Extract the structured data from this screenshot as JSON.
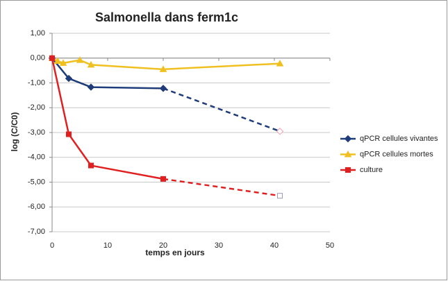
{
  "chart_data": {
    "type": "line",
    "title": "Salmonella dans ferm1c",
    "ylabel": "log (C/C0)",
    "xlabel": "temps en jours",
    "xlim": [
      0,
      50
    ],
    "xticks": [
      0,
      10,
      20,
      30,
      40,
      50
    ],
    "ylim": [
      -7,
      1
    ],
    "yticks": [
      {
        "value": 1,
        "label": "1,00"
      },
      {
        "value": 0,
        "label": "0,00"
      },
      {
        "value": -1,
        "label": "-1,00"
      },
      {
        "value": -2,
        "label": "-2,00"
      },
      {
        "value": -3,
        "label": "-3,00"
      },
      {
        "value": -4,
        "label": "-4,00"
      },
      {
        "value": -5,
        "label": "-5,00"
      },
      {
        "value": -6,
        "label": "-6,00"
      },
      {
        "value": -7,
        "label": "-7,00"
      }
    ],
    "grid": true,
    "legend": "right",
    "series": [
      {
        "name": "qPCR cellules vivantes",
        "color": "#1f3c7a",
        "marker": "diamond",
        "x": [
          0,
          3,
          7,
          20,
          41
        ],
        "values": [
          0,
          -0.82,
          -1.17,
          -1.22,
          -2.95
        ],
        "dashed_after": 20
      },
      {
        "name": "qPCR cellules mortes",
        "color": "#f0c020",
        "marker": "triangle",
        "x": [
          0,
          1,
          2,
          5,
          7,
          20,
          41
        ],
        "values": [
          0,
          -0.12,
          -0.2,
          -0.08,
          -0.27,
          -0.45,
          -0.22
        ]
      },
      {
        "name": "culture",
        "color": "#e02020",
        "marker": "square",
        "x": [
          0,
          3,
          7,
          20,
          41
        ],
        "values": [
          0,
          -3.07,
          -4.33,
          -4.87,
          -5.55
        ],
        "dashed_after": 20
      }
    ]
  }
}
